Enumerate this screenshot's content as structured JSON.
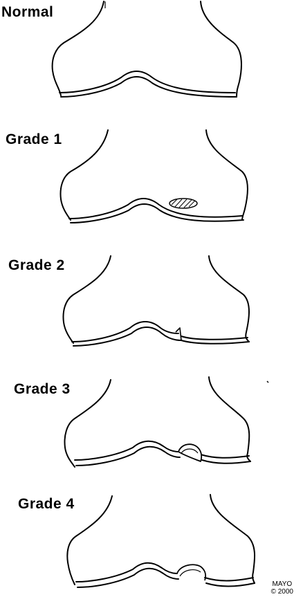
{
  "grades": [
    {
      "label": "Normal",
      "lesion": "none"
    },
    {
      "label": "Grade 1",
      "lesion": "softening"
    },
    {
      "label": "Grade 2",
      "lesion": "partial-fissure"
    },
    {
      "label": "Grade 3",
      "lesion": "flap"
    },
    {
      "label": "Grade 4",
      "lesion": "full-thickness-defect"
    }
  ],
  "credit": {
    "line1": "MAYO",
    "line2": "© 2000"
  },
  "colors": {
    "ink": "#000000",
    "background": "#ffffff"
  }
}
